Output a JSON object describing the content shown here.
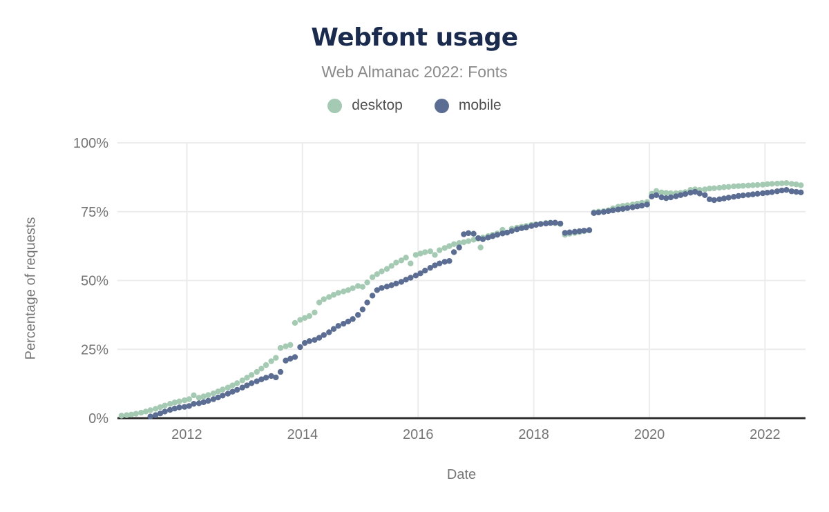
{
  "chart_data": {
    "type": "scatter",
    "title": "Webfont usage",
    "subtitle": "Web Almanac 2022: Fonts",
    "xlabel": "Date",
    "ylabel": "Percentage of requests",
    "x_range": [
      2010.8,
      2022.7
    ],
    "ylim": [
      0,
      100
    ],
    "xticks": [
      2012,
      2014,
      2016,
      2018,
      2020,
      2022
    ],
    "yticks": [
      0,
      25,
      50,
      75,
      100
    ],
    "ytick_suffix": "%",
    "grid": true,
    "legend_position": "top",
    "colors": {
      "axis_line": "#2f2f2f",
      "gridline": "#ececec",
      "title": "#1b2b4d",
      "subtitle": "#8a8a8a",
      "tick_label": "#757575"
    },
    "series": [
      {
        "name": "desktop",
        "color": "#a5cab3",
        "points": [
          [
            2010.87,
            0.9
          ],
          [
            2010.96,
            1.1
          ],
          [
            2011.04,
            1.3
          ],
          [
            2011.12,
            1.6
          ],
          [
            2011.21,
            2.0
          ],
          [
            2011.29,
            2.4
          ],
          [
            2011.37,
            2.9
          ],
          [
            2011.46,
            3.4
          ],
          [
            2011.54,
            4.0
          ],
          [
            2011.62,
            4.6
          ],
          [
            2011.71,
            5.2
          ],
          [
            2011.79,
            5.7
          ],
          [
            2011.87,
            6.1
          ],
          [
            2011.96,
            6.5
          ],
          [
            2012.04,
            6.9
          ],
          [
            2012.12,
            8.3
          ],
          [
            2012.21,
            7.4
          ],
          [
            2012.29,
            7.9
          ],
          [
            2012.37,
            8.4
          ],
          [
            2012.46,
            9.0
          ],
          [
            2012.54,
            9.7
          ],
          [
            2012.62,
            10.4
          ],
          [
            2012.71,
            11.1
          ],
          [
            2012.79,
            11.9
          ],
          [
            2012.87,
            12.7
          ],
          [
            2012.96,
            13.7
          ],
          [
            2013.04,
            14.7
          ],
          [
            2013.12,
            15.7
          ],
          [
            2013.21,
            16.8
          ],
          [
            2013.29,
            18.0
          ],
          [
            2013.37,
            19.3
          ],
          [
            2013.46,
            20.7
          ],
          [
            2013.54,
            21.9
          ],
          [
            2013.62,
            25.5
          ],
          [
            2013.71,
            26.1
          ],
          [
            2013.79,
            26.6
          ],
          [
            2013.87,
            34.6
          ],
          [
            2013.96,
            35.7
          ],
          [
            2014.04,
            36.4
          ],
          [
            2014.12,
            37.1
          ],
          [
            2014.21,
            38.4
          ],
          [
            2014.29,
            42.0
          ],
          [
            2014.37,
            43.2
          ],
          [
            2014.46,
            44.0
          ],
          [
            2014.54,
            44.8
          ],
          [
            2014.62,
            45.5
          ],
          [
            2014.71,
            46.0
          ],
          [
            2014.79,
            46.5
          ],
          [
            2014.87,
            47.2
          ],
          [
            2014.96,
            48.0
          ],
          [
            2015.04,
            47.7
          ],
          [
            2015.12,
            49.3
          ],
          [
            2015.21,
            51.2
          ],
          [
            2015.29,
            52.3
          ],
          [
            2015.37,
            53.3
          ],
          [
            2015.46,
            54.2
          ],
          [
            2015.54,
            55.3
          ],
          [
            2015.62,
            56.5
          ],
          [
            2015.71,
            57.3
          ],
          [
            2015.79,
            58.3
          ],
          [
            2015.87,
            56.2
          ],
          [
            2015.96,
            59.3
          ],
          [
            2016.04,
            59.8
          ],
          [
            2016.12,
            60.3
          ],
          [
            2016.21,
            60.6
          ],
          [
            2016.29,
            59.3
          ],
          [
            2016.37,
            61.0
          ],
          [
            2016.46,
            61.8
          ],
          [
            2016.54,
            62.5
          ],
          [
            2016.62,
            63.2
          ],
          [
            2016.71,
            63.6
          ],
          [
            2016.79,
            63.9
          ],
          [
            2016.87,
            64.3
          ],
          [
            2016.96,
            64.8
          ],
          [
            2017.04,
            65.2
          ],
          [
            2017.08,
            62.0
          ],
          [
            2017.12,
            65.6
          ],
          [
            2017.21,
            66.1
          ],
          [
            2017.29,
            66.6
          ],
          [
            2017.37,
            67.1
          ],
          [
            2017.46,
            68.4
          ],
          [
            2017.54,
            67.4
          ],
          [
            2017.62,
            68.8
          ],
          [
            2017.71,
            69.2
          ],
          [
            2017.79,
            69.5
          ],
          [
            2017.87,
            69.8
          ],
          [
            2017.96,
            70.2
          ],
          [
            2018.04,
            70.4
          ],
          [
            2018.12,
            70.6
          ],
          [
            2018.21,
            70.9
          ],
          [
            2018.29,
            71.0
          ],
          [
            2018.37,
            70.8
          ],
          [
            2018.46,
            70.5
          ],
          [
            2018.54,
            66.6
          ],
          [
            2018.62,
            67.0
          ],
          [
            2018.71,
            67.3
          ],
          [
            2018.79,
            67.6
          ],
          [
            2018.87,
            67.9
          ],
          [
            2018.96,
            68.2
          ],
          [
            2019.04,
            74.8
          ],
          [
            2019.12,
            75.0
          ],
          [
            2019.21,
            75.2
          ],
          [
            2019.29,
            75.5
          ],
          [
            2019.37,
            76.2
          ],
          [
            2019.46,
            76.8
          ],
          [
            2019.54,
            77.1
          ],
          [
            2019.62,
            77.3
          ],
          [
            2019.71,
            77.6
          ],
          [
            2019.79,
            77.9
          ],
          [
            2019.87,
            78.2
          ],
          [
            2019.96,
            78.5
          ],
          [
            2020.04,
            81.5
          ],
          [
            2020.12,
            82.5
          ],
          [
            2020.21,
            82.0
          ],
          [
            2020.29,
            81.8
          ],
          [
            2020.37,
            81.7
          ],
          [
            2020.46,
            81.7
          ],
          [
            2020.54,
            81.8
          ],
          [
            2020.62,
            82.1
          ],
          [
            2020.71,
            82.9
          ],
          [
            2020.79,
            83.1
          ],
          [
            2020.87,
            82.9
          ],
          [
            2020.96,
            83.1
          ],
          [
            2021.04,
            83.4
          ],
          [
            2021.12,
            83.5
          ],
          [
            2021.21,
            83.7
          ],
          [
            2021.29,
            83.9
          ],
          [
            2021.37,
            84.0
          ],
          [
            2021.46,
            84.2
          ],
          [
            2021.54,
            84.3
          ],
          [
            2021.62,
            84.4
          ],
          [
            2021.71,
            84.5
          ],
          [
            2021.79,
            84.6
          ],
          [
            2021.87,
            84.7
          ],
          [
            2021.96,
            84.8
          ],
          [
            2022.04,
            85.0
          ],
          [
            2022.12,
            85.1
          ],
          [
            2022.21,
            85.2
          ],
          [
            2022.29,
            85.3
          ],
          [
            2022.37,
            85.4
          ],
          [
            2022.46,
            85.1
          ],
          [
            2022.54,
            84.9
          ],
          [
            2022.62,
            84.6
          ]
        ]
      },
      {
        "name": "mobile",
        "color": "#5b6d92",
        "points": [
          [
            2011.37,
            0.6
          ],
          [
            2011.46,
            1.1
          ],
          [
            2011.54,
            1.7
          ],
          [
            2011.62,
            2.4
          ],
          [
            2011.71,
            3.0
          ],
          [
            2011.79,
            3.5
          ],
          [
            2011.87,
            3.9
          ],
          [
            2011.96,
            4.1
          ],
          [
            2012.04,
            4.4
          ],
          [
            2012.12,
            5.2
          ],
          [
            2012.21,
            5.4
          ],
          [
            2012.29,
            5.8
          ],
          [
            2012.37,
            6.3
          ],
          [
            2012.46,
            6.9
          ],
          [
            2012.54,
            7.5
          ],
          [
            2012.62,
            8.2
          ],
          [
            2012.71,
            8.9
          ],
          [
            2012.79,
            9.6
          ],
          [
            2012.87,
            10.3
          ],
          [
            2012.96,
            11.1
          ],
          [
            2013.04,
            11.9
          ],
          [
            2013.12,
            12.7
          ],
          [
            2013.21,
            13.4
          ],
          [
            2013.29,
            14.1
          ],
          [
            2013.37,
            14.7
          ],
          [
            2013.46,
            15.3
          ],
          [
            2013.54,
            14.8
          ],
          [
            2013.62,
            16.8
          ],
          [
            2013.71,
            20.9
          ],
          [
            2013.79,
            21.6
          ],
          [
            2013.87,
            22.2
          ],
          [
            2013.96,
            25.8
          ],
          [
            2014.04,
            27.3
          ],
          [
            2014.12,
            28.0
          ],
          [
            2014.21,
            28.4
          ],
          [
            2014.29,
            29.2
          ],
          [
            2014.37,
            30.2
          ],
          [
            2014.46,
            31.2
          ],
          [
            2014.54,
            32.4
          ],
          [
            2014.62,
            33.5
          ],
          [
            2014.71,
            34.3
          ],
          [
            2014.79,
            35.1
          ],
          [
            2014.87,
            36.0
          ],
          [
            2014.96,
            37.5
          ],
          [
            2015.04,
            39.5
          ],
          [
            2015.12,
            42.0
          ],
          [
            2015.21,
            44.5
          ],
          [
            2015.29,
            46.5
          ],
          [
            2015.37,
            47.3
          ],
          [
            2015.46,
            47.8
          ],
          [
            2015.54,
            48.3
          ],
          [
            2015.62,
            48.9
          ],
          [
            2015.71,
            49.5
          ],
          [
            2015.79,
            50.3
          ],
          [
            2015.87,
            51.0
          ],
          [
            2015.96,
            51.8
          ],
          [
            2016.04,
            52.6
          ],
          [
            2016.12,
            53.6
          ],
          [
            2016.21,
            54.6
          ],
          [
            2016.29,
            55.5
          ],
          [
            2016.37,
            56.2
          ],
          [
            2016.46,
            56.8
          ],
          [
            2016.54,
            57.1
          ],
          [
            2016.62,
            60.3
          ],
          [
            2016.71,
            62.0
          ],
          [
            2016.79,
            66.8
          ],
          [
            2016.87,
            67.2
          ],
          [
            2016.96,
            67.0
          ],
          [
            2017.04,
            65.4
          ],
          [
            2017.12,
            65.0
          ],
          [
            2017.21,
            65.6
          ],
          [
            2017.29,
            66.1
          ],
          [
            2017.37,
            66.6
          ],
          [
            2017.46,
            67.1
          ],
          [
            2017.54,
            67.4
          ],
          [
            2017.62,
            68.0
          ],
          [
            2017.71,
            68.6
          ],
          [
            2017.79,
            69.0
          ],
          [
            2017.87,
            69.3
          ],
          [
            2017.96,
            69.8
          ],
          [
            2018.04,
            70.2
          ],
          [
            2018.12,
            70.5
          ],
          [
            2018.21,
            70.7
          ],
          [
            2018.29,
            70.9
          ],
          [
            2018.37,
            71.0
          ],
          [
            2018.46,
            70.7
          ],
          [
            2018.54,
            67.3
          ],
          [
            2018.62,
            67.5
          ],
          [
            2018.71,
            67.7
          ],
          [
            2018.79,
            67.9
          ],
          [
            2018.87,
            68.1
          ],
          [
            2018.96,
            68.3
          ],
          [
            2019.04,
            74.5
          ],
          [
            2019.12,
            74.7
          ],
          [
            2019.21,
            74.9
          ],
          [
            2019.29,
            75.2
          ],
          [
            2019.37,
            75.5
          ],
          [
            2019.46,
            75.8
          ],
          [
            2019.54,
            76.0
          ],
          [
            2019.62,
            76.3
          ],
          [
            2019.71,
            76.6
          ],
          [
            2019.79,
            76.9
          ],
          [
            2019.87,
            77.2
          ],
          [
            2019.96,
            77.6
          ],
          [
            2020.04,
            80.5
          ],
          [
            2020.12,
            81.0
          ],
          [
            2020.21,
            80.2
          ],
          [
            2020.29,
            79.9
          ],
          [
            2020.37,
            80.2
          ],
          [
            2020.46,
            80.6
          ],
          [
            2020.54,
            81.0
          ],
          [
            2020.62,
            81.4
          ],
          [
            2020.71,
            81.9
          ],
          [
            2020.79,
            82.2
          ],
          [
            2020.87,
            81.6
          ],
          [
            2020.96,
            81.0
          ],
          [
            2021.04,
            79.5
          ],
          [
            2021.12,
            79.2
          ],
          [
            2021.21,
            79.5
          ],
          [
            2021.29,
            79.8
          ],
          [
            2021.37,
            80.1
          ],
          [
            2021.46,
            80.4
          ],
          [
            2021.54,
            80.7
          ],
          [
            2021.62,
            80.9
          ],
          [
            2021.71,
            81.1
          ],
          [
            2021.79,
            81.3
          ],
          [
            2021.87,
            81.5
          ],
          [
            2021.96,
            81.7
          ],
          [
            2022.04,
            81.9
          ],
          [
            2022.12,
            82.1
          ],
          [
            2022.21,
            82.4
          ],
          [
            2022.29,
            82.7
          ],
          [
            2022.37,
            82.9
          ],
          [
            2022.46,
            82.4
          ],
          [
            2022.54,
            82.2
          ],
          [
            2022.62,
            82.0
          ]
        ]
      }
    ]
  }
}
